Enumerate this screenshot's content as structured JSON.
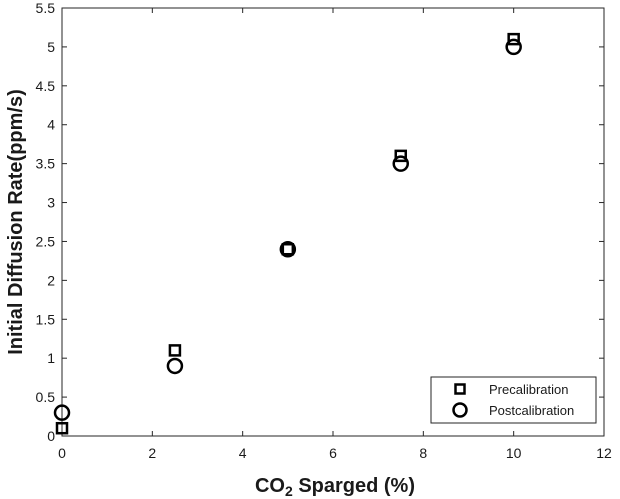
{
  "chart_data": {
    "type": "scatter",
    "title": "",
    "xlabel_main": "CO",
    "xlabel_sub": "2",
    "xlabel_rest": " Sparged (%)",
    "ylabel": "Initial Diffusion Rate(ppm/s)",
    "xlim": [
      0,
      12
    ],
    "ylim": [
      0,
      5.5
    ],
    "x_ticks": [
      "0",
      "2",
      "4",
      "6",
      "8",
      "10",
      "12"
    ],
    "y_ticks": [
      "0",
      "0.5",
      "1",
      "1.5",
      "2",
      "2.5",
      "3",
      "3.5",
      "4",
      "4.5",
      "5",
      "5.5"
    ],
    "grid": false,
    "legend_position": "bottom-right",
    "series": [
      {
        "name": "Precalibration",
        "marker": "square",
        "x": [
          0,
          2.5,
          5,
          7.5,
          10
        ],
        "y": [
          0.1,
          1.1,
          2.4,
          3.6,
          5.1
        ]
      },
      {
        "name": "Postcalibration",
        "marker": "circle",
        "x": [
          0,
          2.5,
          5,
          7.5,
          10
        ],
        "y": [
          0.3,
          0.9,
          2.4,
          3.5,
          5.0
        ]
      }
    ]
  }
}
